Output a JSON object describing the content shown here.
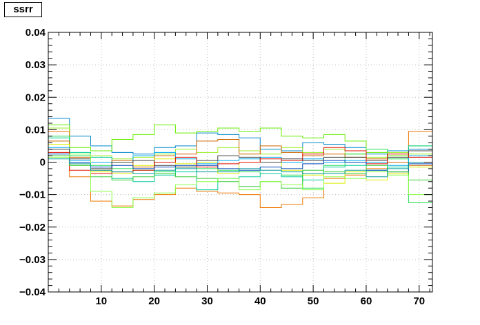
{
  "chart_data": {
    "type": "line",
    "title": "ssrr",
    "xlabel": "",
    "ylabel": "",
    "xlim": [
      0,
      72.5
    ],
    "ylim": [
      -0.04,
      0.04
    ],
    "x_major_ticks": [
      10,
      20,
      30,
      40,
      50,
      60,
      70
    ],
    "x_tick_labels": [
      "10",
      "20",
      "30",
      "40",
      "50",
      "60",
      "70"
    ],
    "y_major_ticks": [
      -0.04,
      -0.03,
      -0.02,
      -0.01,
      0,
      0.01,
      0.02,
      0.03,
      0.04
    ],
    "y_tick_labels": [
      "−0.04",
      "−0.03",
      "−0.02",
      "−0.01",
      "0",
      "0.01",
      "0.02",
      "0.03",
      "0.04"
    ],
    "grid": true,
    "bin_edges": [
      0,
      4,
      8,
      12,
      16,
      20,
      24,
      28,
      32,
      36,
      40,
      44,
      48,
      52,
      56,
      60,
      64,
      68,
      72.5
    ],
    "series": [
      {
        "color": "#0088cc",
        "values": [
          0.0135,
          0.008,
          0.005,
          0.003,
          0.0025,
          0.0045,
          0.005,
          0.009,
          0.0085,
          0.0075,
          0.004,
          0.0035,
          0.006,
          0.0055,
          0.0045,
          0.0025,
          0.0035,
          0.004
        ]
      },
      {
        "color": "#66ee00",
        "values": [
          0.0115,
          0.0045,
          0.0035,
          0.007,
          0.0085,
          0.0115,
          0.009,
          0.0095,
          0.0105,
          0.0095,
          0.0105,
          0.008,
          0.0075,
          0.0085,
          0.0065,
          0.003,
          0.002,
          0.005
        ]
      },
      {
        "color": "#99ee22",
        "values": [
          0.0105,
          -0.001,
          0.002,
          0.001,
          0.0015,
          0.0025,
          0.004,
          0.003,
          0.0045,
          0.0035,
          0.0025,
          0.0045,
          0.003,
          0.004,
          0.0025,
          0.0015,
          0.003,
          0.0025
        ]
      },
      {
        "color": "#ee7700",
        "values": [
          0.0095,
          -0.0045,
          -0.012,
          -0.0135,
          -0.0115,
          -0.01,
          -0.008,
          -0.009,
          -0.0095,
          -0.01,
          -0.014,
          -0.013,
          -0.011,
          -0.005,
          -0.004,
          -0.002,
          -0.003,
          0.0095
        ]
      },
      {
        "color": "#22dd55",
        "values": [
          0.008,
          0.002,
          -0.001,
          -0.002,
          -0.0025,
          -0.003,
          -0.0015,
          -0.002,
          -0.0025,
          -0.003,
          -0.0035,
          -0.004,
          -0.008,
          -0.001,
          0.0025,
          0.004,
          0.001,
          -0.0125
        ]
      },
      {
        "color": "#00cc99",
        "values": [
          0.0075,
          0.003,
          0.0015,
          -0.005,
          -0.006,
          -0.004,
          -0.003,
          -0.0085,
          -0.005,
          -0.0045,
          -0.0035,
          -0.0045,
          -0.0055,
          -0.0015,
          -0.001,
          -0.0025,
          -0.0015,
          0.005
        ]
      },
      {
        "color": "#cc6600",
        "values": [
          0.0065,
          0.0015,
          -0.0025,
          0.0005,
          -0.0015,
          0.002,
          0.0025,
          0.0065,
          0.007,
          0.0025,
          0.005,
          0.003,
          0.002,
          0.0025,
          0.0015,
          0.001,
          0.0,
          -0.001
        ]
      },
      {
        "color": "#ddee00",
        "values": [
          0.0055,
          0.0,
          -0.003,
          -0.0035,
          -0.001,
          0.001,
          -0.0005,
          0.0,
          -0.0035,
          0.0,
          0.0,
          -0.0025,
          -0.004,
          -0.0065,
          -0.003,
          -0.0055,
          -0.0035,
          -0.0015
        ]
      },
      {
        "color": "#00aaee",
        "values": [
          0.0045,
          0.0005,
          0.0,
          0.0,
          0.002,
          0.003,
          0.001,
          -0.0005,
          0.0005,
          0.001,
          0.0015,
          0.0,
          0.001,
          0.0,
          0.0005,
          0.0,
          -0.001,
          0.002
        ]
      },
      {
        "color": "#444444",
        "values": [
          0.004,
          0.001,
          -0.002,
          0.0,
          0.0005,
          -0.001,
          -0.0015,
          0.0005,
          0.002,
          0.0015,
          0.0,
          0.001,
          0.0005,
          0.0015,
          0.0015,
          0.0005,
          0.0015,
          0.0035
        ]
      },
      {
        "color": "#dd1100",
        "values": [
          0.003,
          -0.0025,
          -0.0035,
          -0.003,
          -0.0025,
          0.0,
          0.0015,
          -0.0015,
          -0.0005,
          0.0,
          0.001,
          0.0005,
          0.0025,
          0.0045,
          0.0035,
          -0.0005,
          0.0025,
          0.0015
        ]
      },
      {
        "color": "#0044bb",
        "values": [
          0.0025,
          0.0,
          -0.0015,
          -0.001,
          -0.002,
          -0.0015,
          -0.001,
          -0.001,
          -0.002,
          -0.0025,
          -0.0015,
          -0.002,
          -0.0005,
          0.0005,
          0.0,
          -0.0025,
          -0.003,
          -0.0005
        ]
      },
      {
        "color": "#33cc33",
        "values": [
          0.002,
          -0.001,
          -0.0045,
          -0.0055,
          -0.0045,
          -0.0035,
          -0.0045,
          -0.005,
          -0.006,
          -0.0075,
          -0.006,
          -0.008,
          -0.0025,
          -0.003,
          -0.0035,
          -0.001,
          -0.003,
          -0.0055
        ]
      },
      {
        "color": "#88ff44",
        "values": [
          0.0015,
          0.0025,
          -0.009,
          -0.014,
          -0.011,
          -0.0095,
          -0.007,
          -0.006,
          -0.005,
          -0.0085,
          -0.006,
          -0.007,
          -0.0085,
          -0.0045,
          -0.005,
          -0.003,
          -0.004,
          -0.01
        ]
      },
      {
        "color": "#009999",
        "values": [
          0.001,
          -0.0005,
          -0.0025,
          -0.003,
          -0.0035,
          -0.0025,
          -0.002,
          -0.003,
          -0.003,
          -0.002,
          -0.0025,
          -0.003,
          -0.0035,
          -0.0035,
          -0.0025,
          -0.0045,
          -0.002,
          0.0
        ]
      }
    ]
  }
}
